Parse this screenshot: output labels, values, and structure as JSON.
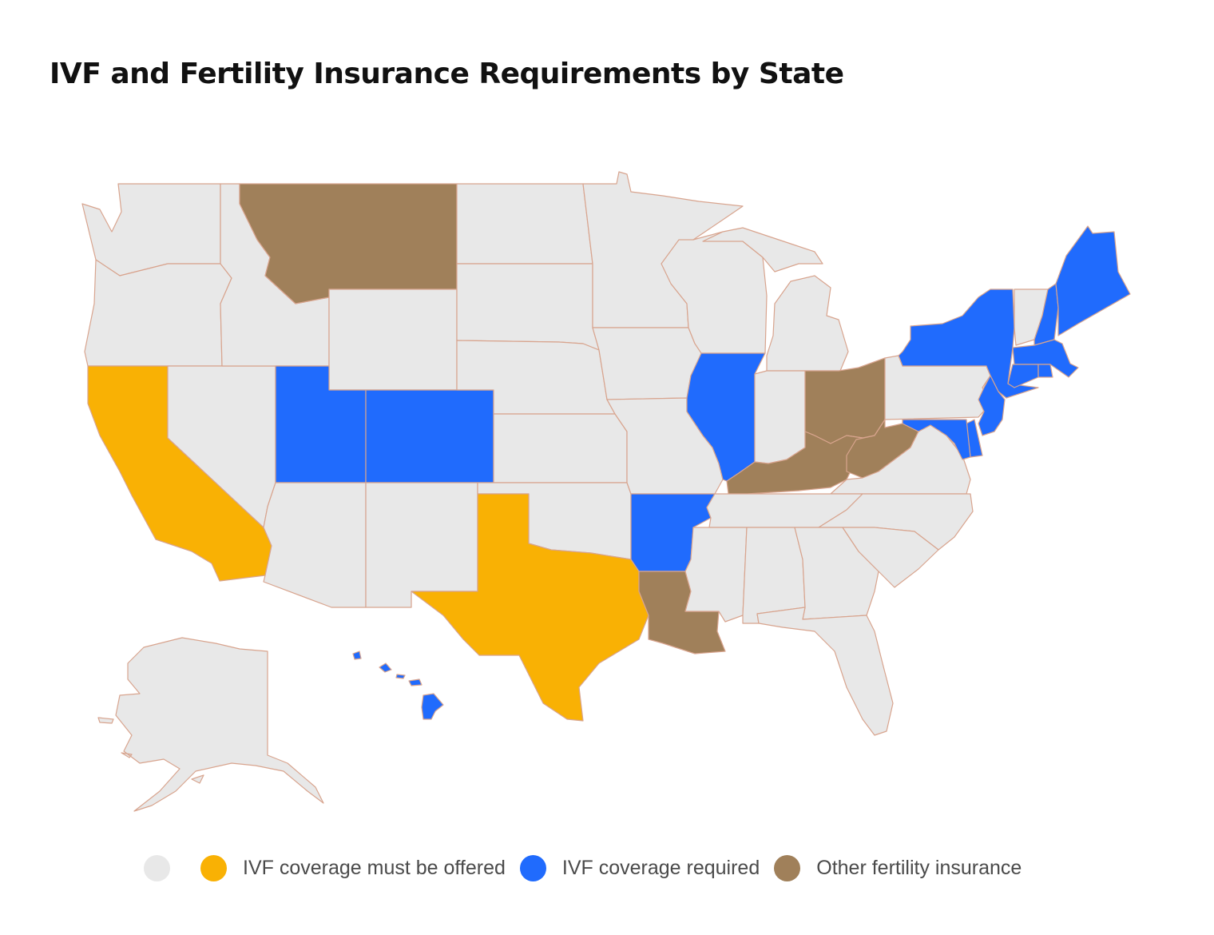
{
  "title": "IVF and Fertility Insurance Requirements by State",
  "colors": {
    "none": "#e8e8e8",
    "offered": "#f9b104",
    "required": "#206bfd",
    "other": "#a0805a",
    "border": "#d8a48e"
  },
  "legend": [
    {
      "key": "none",
      "label": ""
    },
    {
      "key": "offered",
      "label": "IVF coverage must be offered"
    },
    {
      "key": "required",
      "label": "IVF coverage required"
    },
    {
      "key": "other",
      "label": "Other fertility insurance"
    }
  ],
  "states": {
    "WA": "none",
    "OR": "none",
    "CA": "offered",
    "NV": "none",
    "ID": "none",
    "MT": "other",
    "WY": "none",
    "UT": "required",
    "CO": "required",
    "AZ": "none",
    "NM": "none",
    "ND": "none",
    "SD": "none",
    "NE": "none",
    "KS": "none",
    "OK": "none",
    "TX": "offered",
    "MN": "none",
    "IA": "none",
    "MO": "none",
    "AR": "required",
    "LA": "other",
    "WI": "none",
    "IL": "required",
    "MI": "none",
    "IN": "none",
    "OH": "other",
    "KY": "other",
    "TN": "none",
    "MS": "none",
    "AL": "none",
    "GA": "none",
    "FL": "none",
    "SC": "none",
    "NC": "none",
    "VA": "none",
    "WV": "other",
    "PA": "none",
    "NY": "required",
    "VT": "none",
    "NH": "required",
    "ME": "required",
    "MA": "required",
    "RI": "required",
    "CT": "required",
    "NJ": "required",
    "DE": "required",
    "MD": "required",
    "AK": "none",
    "HI": "required"
  }
}
